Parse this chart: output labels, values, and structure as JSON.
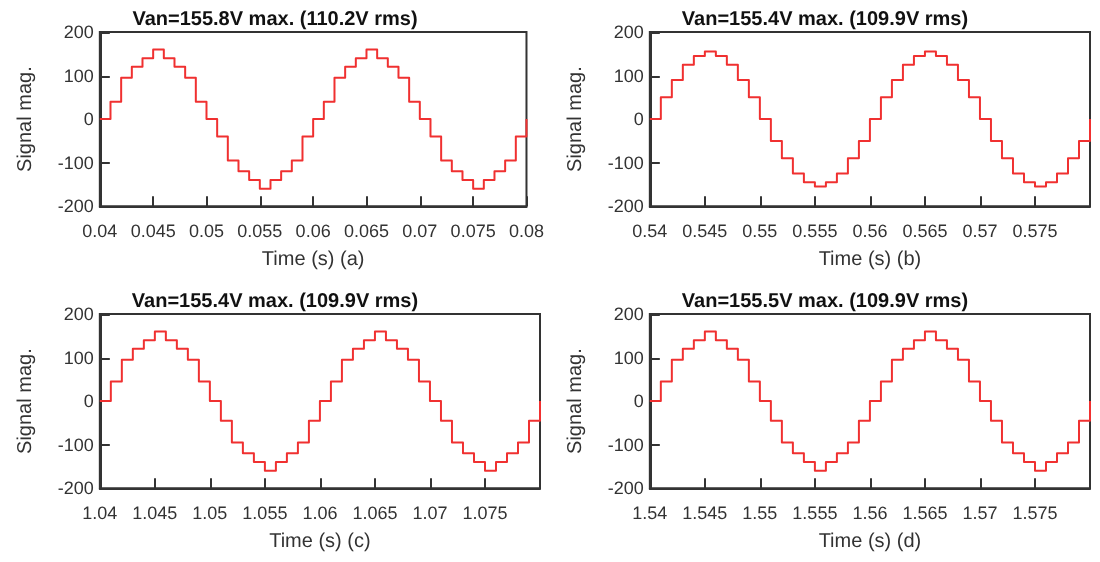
{
  "chart_data": [
    {
      "type": "step",
      "title": "Van=155.8V max. (110.2V rms)",
      "xlabel": "Time (s) (a)",
      "ylabel": "Signal mag.",
      "x": [
        0.04,
        0.041,
        0.042,
        0.043,
        0.044,
        0.045,
        0.046,
        0.047,
        0.048,
        0.049,
        0.05,
        0.051,
        0.052,
        0.053,
        0.054,
        0.055,
        0.056,
        0.057,
        0.058,
        0.059,
        0.06,
        0.061,
        0.062,
        0.063,
        0.064,
        0.065,
        0.066,
        0.067,
        0.068,
        0.069,
        0.07,
        0.071,
        0.072,
        0.073,
        0.074,
        0.075,
        0.076,
        0.077,
        0.078,
        0.079,
        0.08
      ],
      "series": [
        {
          "color": "#f03030",
          "values": [
            0,
            40,
            95,
            120,
            140,
            160,
            140,
            120,
            95,
            40,
            0,
            -40,
            -95,
            -120,
            -140,
            -160,
            -140,
            -120,
            -95,
            -40,
            0,
            40,
            95,
            120,
            140,
            160,
            140,
            120,
            95,
            40,
            0,
            -40,
            -95,
            -120,
            -140,
            -160,
            -140,
            -120,
            -95,
            -40,
            0
          ]
        }
      ],
      "xlim": [
        0.04,
        0.08
      ],
      "xticks": [
        0.04,
        0.045,
        0.05,
        0.055,
        0.06,
        0.065,
        0.07,
        0.075,
        0.08
      ],
      "ylim": [
        -200,
        200
      ],
      "yticks": [
        -200,
        -100,
        0,
        100,
        200
      ]
    },
    {
      "type": "step",
      "title": "Van=155.4V max. (109.9V rms)",
      "xlabel": "Time (s) (b)",
      "ylabel": "Signal mag.",
      "x": [
        0.54,
        0.541,
        0.542,
        0.543,
        0.544,
        0.545,
        0.546,
        0.547,
        0.548,
        0.549,
        0.55,
        0.551,
        0.552,
        0.553,
        0.554,
        0.555,
        0.556,
        0.557,
        0.558,
        0.559,
        0.56,
        0.561,
        0.562,
        0.563,
        0.564,
        0.565,
        0.566,
        0.567,
        0.568,
        0.569,
        0.57,
        0.571,
        0.572,
        0.573,
        0.574,
        0.575,
        0.576,
        0.577,
        0.578,
        0.579,
        0.58
      ],
      "series": [
        {
          "color": "#f03030",
          "values": [
            0,
            50,
            90,
            125,
            145,
            155,
            145,
            125,
            90,
            50,
            0,
            -50,
            -90,
            -125,
            -145,
            -155,
            -145,
            -125,
            -90,
            -50,
            0,
            50,
            90,
            125,
            145,
            155,
            145,
            125,
            90,
            50,
            0,
            -50,
            -90,
            -125,
            -145,
            -155,
            -145,
            -125,
            -90,
            -50,
            0
          ]
        }
      ],
      "xlim": [
        0.54,
        0.58
      ],
      "xticks": [
        0.54,
        0.545,
        0.55,
        0.555,
        0.56,
        0.565,
        0.57,
        0.575
      ],
      "ylim": [
        -200,
        200
      ],
      "yticks": [
        -200,
        -100,
        0,
        100,
        200
      ]
    },
    {
      "type": "step",
      "title": "Van=155.4V max. (109.9V rms)",
      "xlabel": "Time (s) (c)",
      "ylabel": "Signal mag.",
      "x": [
        1.04,
        1.041,
        1.042,
        1.043,
        1.044,
        1.045,
        1.046,
        1.047,
        1.048,
        1.049,
        1.05,
        1.051,
        1.052,
        1.053,
        1.054,
        1.055,
        1.056,
        1.057,
        1.058,
        1.059,
        1.06,
        1.061,
        1.062,
        1.063,
        1.064,
        1.065,
        1.066,
        1.067,
        1.068,
        1.069,
        1.07,
        1.071,
        1.072,
        1.073,
        1.074,
        1.075,
        1.076,
        1.077,
        1.078,
        1.079,
        1.08
      ],
      "series": [
        {
          "color": "#f03030",
          "values": [
            0,
            45,
            95,
            120,
            140,
            160,
            140,
            120,
            95,
            45,
            0,
            -45,
            -95,
            -120,
            -140,
            -160,
            -140,
            -120,
            -95,
            -45,
            0,
            45,
            95,
            120,
            140,
            160,
            140,
            120,
            95,
            45,
            0,
            -45,
            -95,
            -120,
            -140,
            -160,
            -140,
            -120,
            -95,
            -45,
            0
          ]
        }
      ],
      "xlim": [
        1.04,
        1.08
      ],
      "xticks": [
        1.04,
        1.045,
        1.05,
        1.055,
        1.06,
        1.065,
        1.07,
        1.075
      ],
      "ylim": [
        -200,
        200
      ],
      "yticks": [
        -200,
        -100,
        0,
        100,
        200
      ]
    },
    {
      "type": "step",
      "title": "Van=155.5V max. (109.9V rms)",
      "xlabel": "Time (s) (d)",
      "ylabel": "Signal mag.",
      "x": [
        1.54,
        1.541,
        1.542,
        1.543,
        1.544,
        1.545,
        1.546,
        1.547,
        1.548,
        1.549,
        1.55,
        1.551,
        1.552,
        1.553,
        1.554,
        1.555,
        1.556,
        1.557,
        1.558,
        1.559,
        1.56,
        1.561,
        1.562,
        1.563,
        1.564,
        1.565,
        1.566,
        1.567,
        1.568,
        1.569,
        1.57,
        1.571,
        1.572,
        1.573,
        1.574,
        1.575,
        1.576,
        1.577,
        1.578,
        1.579,
        1.58
      ],
      "series": [
        {
          "color": "#f03030",
          "values": [
            0,
            45,
            95,
            120,
            140,
            160,
            140,
            120,
            95,
            45,
            0,
            -45,
            -95,
            -120,
            -140,
            -160,
            -140,
            -120,
            -95,
            -45,
            0,
            45,
            95,
            120,
            140,
            160,
            140,
            120,
            95,
            45,
            0,
            -45,
            -95,
            -120,
            -140,
            -160,
            -140,
            -120,
            -95,
            -45,
            0
          ]
        }
      ],
      "xlim": [
        1.54,
        1.58
      ],
      "xticks": [
        1.54,
        1.545,
        1.55,
        1.555,
        1.56,
        1.565,
        1.57,
        1.575
      ],
      "ylim": [
        -200,
        200
      ],
      "yticks": [
        -200,
        -100,
        0,
        100,
        200
      ]
    }
  ]
}
